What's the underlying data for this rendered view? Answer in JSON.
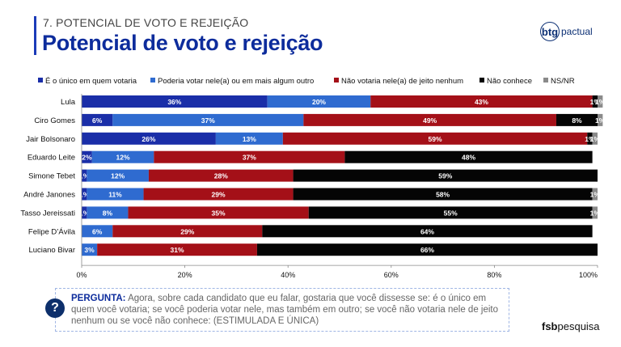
{
  "header": {
    "section": "7. POTENCIAL DE VOTO E REJEIÇÃO",
    "title": "Potencial de voto e rejeição",
    "logo_brand": "btg",
    "logo_sub": "pactual"
  },
  "chart_data": {
    "type": "bar",
    "orientation": "horizontal",
    "stacked": true,
    "categories": [
      "Lula",
      "Ciro Gomes",
      "Jair Bolsonaro",
      "Eduardo Leite",
      "Simone Tebet",
      "André Janones",
      "Tasso Jereissati",
      "Felipe D’Ávila",
      "Luciano Bivar"
    ],
    "series": [
      {
        "name": "É o único em quem votaria",
        "color": "#1a2ea8",
        "values": [
          36,
          6,
          26,
          2,
          1,
          1,
          1,
          0,
          0
        ],
        "labels": [
          "36%",
          "6%",
          "26%",
          "2%",
          "1%",
          "1%",
          "1%",
          "",
          ""
        ]
      },
      {
        "name": "Poderia votar nele(a) ou em mais algum outro",
        "color": "#2f6bd0",
        "values": [
          20,
          37,
          13,
          12,
          12,
          11,
          8,
          6,
          3
        ],
        "labels": [
          "20%",
          "37%",
          "13%",
          "12%",
          "12%",
          "11%",
          "8%",
          "6%",
          "3%"
        ]
      },
      {
        "name": "Não votaria nele(a) de jeito nenhum",
        "color": "#a41018",
        "values": [
          43,
          49,
          59,
          37,
          28,
          29,
          35,
          29,
          31
        ],
        "labels": [
          "43%",
          "49%",
          "59%",
          "37%",
          "28%",
          "29%",
          "35%",
          "29%",
          "31%"
        ]
      },
      {
        "name": "Não conhece",
        "color": "#050505",
        "values": [
          1,
          8,
          1,
          48,
          59,
          58,
          55,
          64,
          66
        ],
        "labels": [
          "1%",
          "8%",
          "1%",
          "48%",
          "59%",
          "58%",
          "55%",
          "64%",
          "66%"
        ]
      },
      {
        "name": "NS/NR",
        "color": "#8a8a8a",
        "values": [
          1,
          1,
          1,
          0,
          0,
          1,
          1,
          0,
          0
        ],
        "labels": [
          "1%",
          "1%",
          "1%",
          "",
          "",
          "1%",
          "1%",
          "",
          ""
        ]
      }
    ],
    "x_ticks": [
      "0%",
      "20%",
      "40%",
      "60%",
      "80%",
      "100%"
    ],
    "xlim": [
      0,
      100
    ],
    "grid": false,
    "legend_position": "top-left"
  },
  "question": {
    "label": "PERGUNTA:",
    "text": "Agora, sobre cada candidato que eu falar, gostaria que você dissesse se: é o único em quem você votaria; se você poderia votar nele, mas também em outro; se você não votaria nele de jeito nenhum ou se você não conhece: (ESTIMULADA E ÚNICA)",
    "icon": "question-icon"
  },
  "footer": {
    "brand_bold": "fsb",
    "brand_rest": "pesquisa"
  }
}
